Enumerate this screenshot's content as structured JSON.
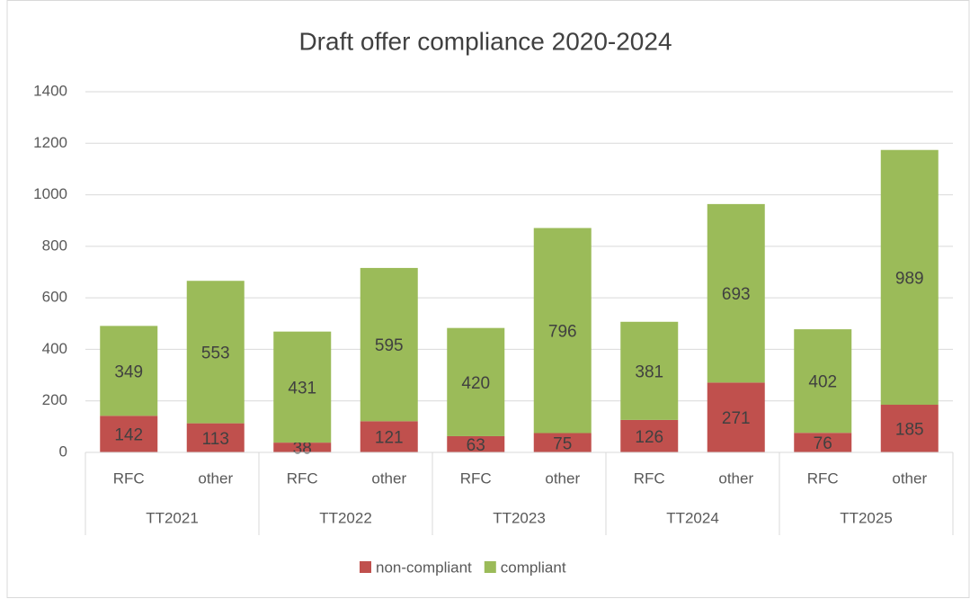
{
  "chart_data": {
    "type": "stacked_bar",
    "title": "Draft offer compliance 2020-2024",
    "categories": [
      "RFC",
      "other",
      "RFC",
      "other",
      "RFC",
      "other",
      "RFC",
      "other",
      "RFC",
      "other"
    ],
    "groups": [
      "TT2021",
      "TT2022",
      "TT2023",
      "TT2024",
      "TT2025"
    ],
    "series": [
      {
        "name": "non-compliant",
        "color": "#c0504d",
        "values": [
          142,
          113,
          38,
          121,
          63,
          75,
          126,
          271,
          76,
          185
        ]
      },
      {
        "name": "compliant",
        "color": "#9bbb59",
        "values": [
          349,
          553,
          431,
          595,
          420,
          796,
          381,
          693,
          402,
          989
        ]
      }
    ],
    "ylim": [
      0,
      1400
    ],
    "yticks": [
      0,
      200,
      400,
      600,
      800,
      1000,
      1200,
      1400
    ],
    "grid": true,
    "legend": "bottom"
  }
}
